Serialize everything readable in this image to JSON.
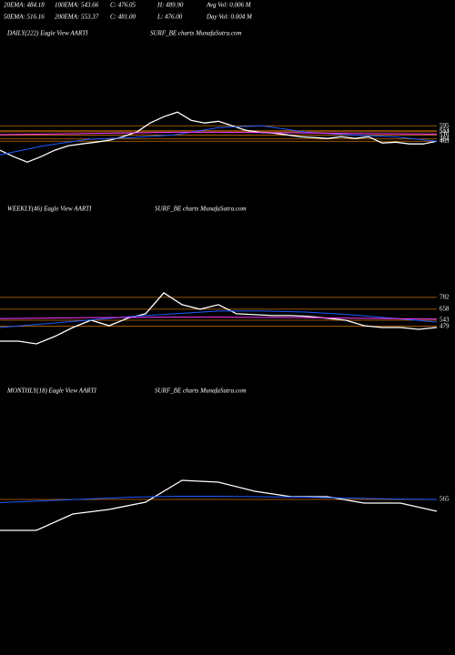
{
  "header": {
    "row1": [
      "20EMA: 484.18",
      "100EMA: 543.66",
      "C: 476.05",
      "H: 489.90",
      "Avg Vol: 0.006  M"
    ],
    "row2": [
      "50EMA: 516.16",
      "200EMA: 553.37",
      "C: 481.00",
      "L: 476.00",
      "Day Vol: 0.004  M"
    ]
  },
  "chart_data": [
    {
      "type": "line",
      "title": "DAILY(222) Eagle  View  AARTI",
      "subtitle": "SURF_BE charts MunafaSutra.com",
      "ylim": [
        0,
        1400
      ],
      "yticks": [
        465,
        484,
        516,
        544,
        553,
        595
      ],
      "grid": true,
      "grid_color": "#c87000",
      "series": [
        {
          "color": "#ffffff",
          "values": [
            389,
            335,
            289,
            335,
            389,
            427,
            442,
            457,
            473,
            503,
            541,
            618,
            671,
            710,
            641,
            618,
            633,
            595,
            557,
            541,
            534,
            519,
            503,
            496,
            488,
            503,
            488,
            503,
            450,
            457,
            442,
            442,
            465
          ]
        },
        {
          "color": "#1e5aff",
          "values": [
            350,
            427,
            480,
            496,
            519,
            580,
            595,
            541,
            519,
            503,
            465
          ]
        },
        {
          "color": "#ff3cff",
          "values": [
            520,
            525,
            530,
            535,
            540,
            540,
            538,
            535,
            530,
            528,
            525
          ]
        }
      ]
    },
    {
      "type": "line",
      "title": "WEEKLY(46) Eagle  View  AARTI",
      "subtitle": "SURF_BE charts MunafaSutra.com",
      "ylim": [
        0,
        1600
      ],
      "yticks": [
        479,
        543,
        658,
        782
      ],
      "grid": true,
      "grid_color": "#c87000",
      "series": [
        {
          "color": "#ffffff",
          "values": [
            324,
            324,
            295,
            372,
            467,
            543,
            486,
            563,
            610,
            830,
            706,
            658,
            706,
            610,
            601,
            591,
            591,
            582,
            563,
            543,
            486,
            467,
            467,
            448,
            467
          ]
        },
        {
          "color": "#1e5aff",
          "values": [
            467,
            505,
            543,
            582,
            610,
            639,
            639,
            629,
            601,
            563,
            524
          ]
        },
        {
          "color": "#ff3cff",
          "values": [
            560,
            565,
            570,
            572,
            575,
            575,
            572,
            570,
            565,
            560,
            555
          ]
        }
      ]
    },
    {
      "type": "line",
      "title": "MONTHLY(18) Eagle  View  AARTI",
      "subtitle": "SURF_BE charts MunafaSutra.com",
      "ylim": [
        0,
        1600
      ],
      "yticks": [
        565
      ],
      "grid": true,
      "grid_color": "#c87000",
      "series": [
        {
          "color": "#ffffff",
          "values": [
            225,
            225,
            405,
            455,
            535,
            775,
            755,
            655,
            595,
            595,
            525,
            525,
            435
          ]
        },
        {
          "color": "#1e5aff",
          "values": [
            530,
            550,
            570,
            590,
            600,
            600,
            595,
            590,
            580,
            570,
            565
          ]
        }
      ]
    }
  ]
}
